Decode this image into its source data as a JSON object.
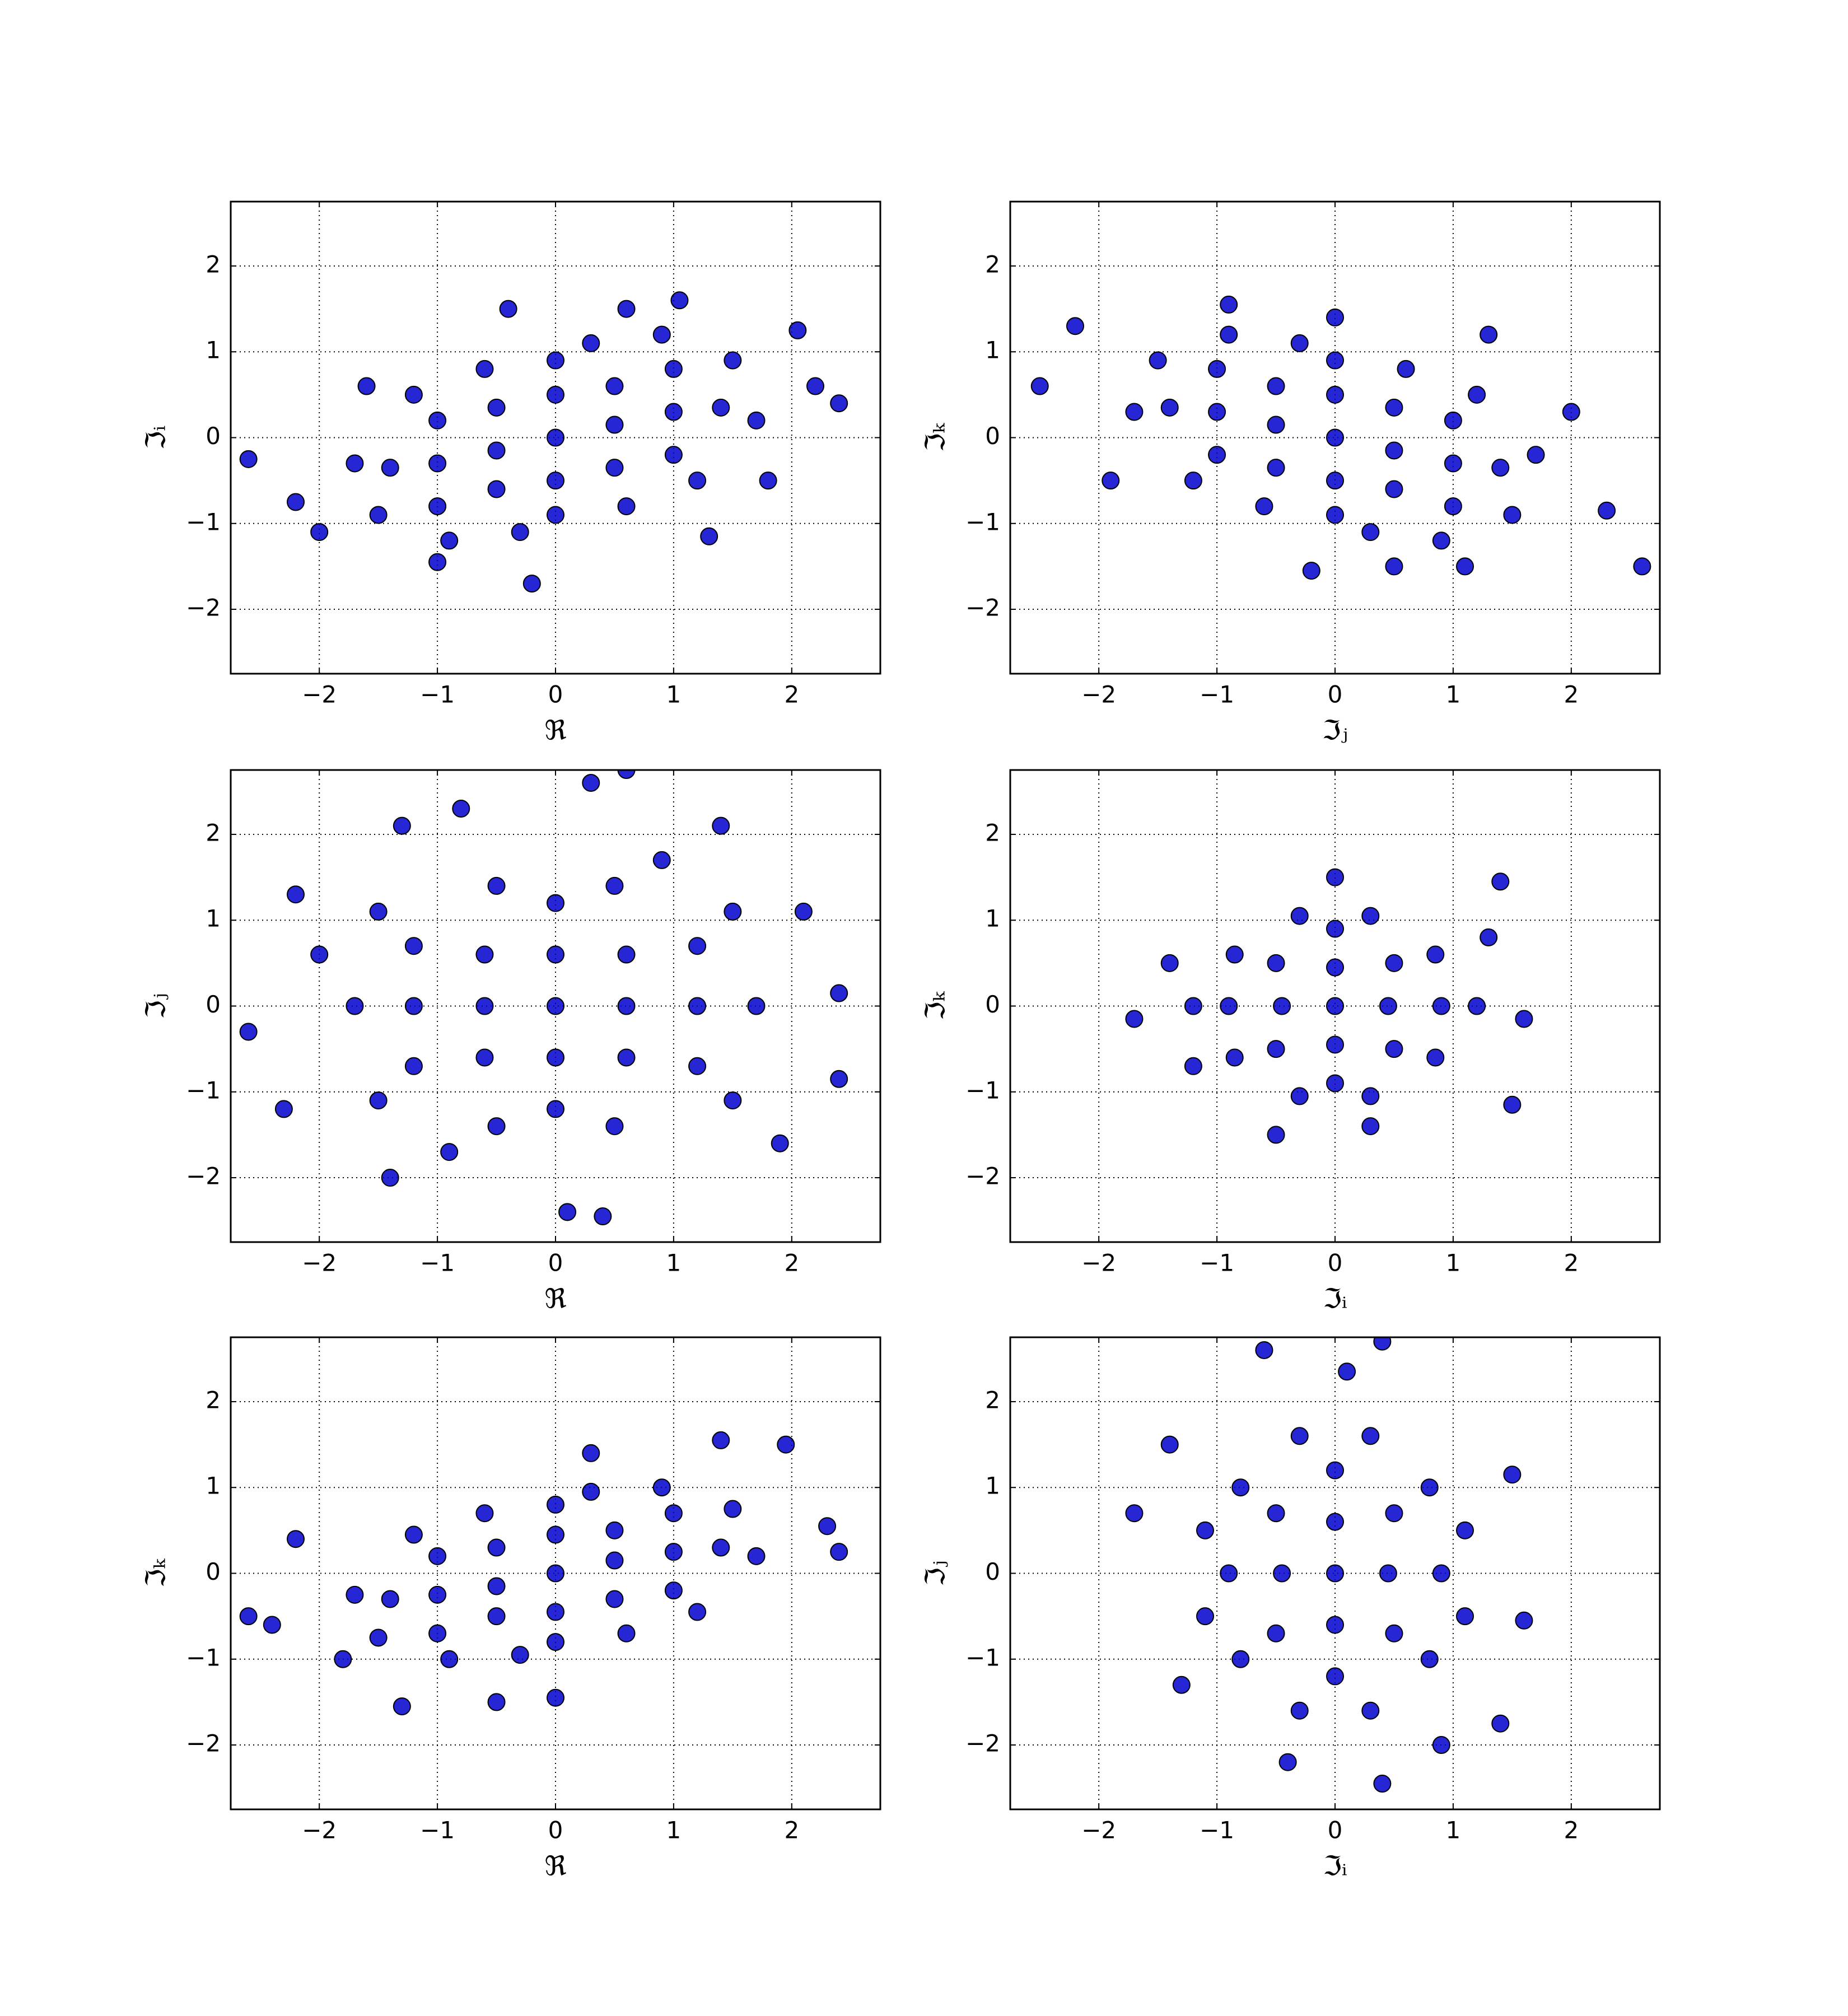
{
  "chart_data": [
    {
      "type": "scatter",
      "xlabel": "ℜ",
      "ylabel": "ℑᵢ",
      "color": "#0000cc",
      "grid": true,
      "xlim": [
        -2.75,
        2.75
      ],
      "ylim": [
        -2.75,
        2.75
      ],
      "xticks": [
        {
          "value": -2,
          "label": "−2"
        },
        {
          "value": -1,
          "label": "−1"
        },
        0,
        1,
        2
      ],
      "yticks": [
        {
          "value": -2,
          "label": "−2"
        },
        {
          "value": -1,
          "label": "−1"
        },
        0,
        1,
        2
      ],
      "x": [
        0,
        0.5,
        -0.5,
        1,
        -1,
        1.4,
        -1.4,
        0,
        0,
        0.5,
        -0.5,
        0.5,
        -0.5,
        1,
        -1,
        1,
        -1,
        0,
        0,
        -0.6,
        0.6,
        1.5,
        -1.5,
        1.7,
        -1.7,
        0.3,
        -0.3,
        -1.2,
        1.2,
        0.9,
        -0.9,
        -2.6,
        2.4,
        2.05,
        1.05,
        -0.4,
        -0.2,
        1.3,
        -2.2,
        -1.0,
        0.6,
        2.2,
        -2.0,
        -1.6,
        1.8
      ],
      "y": [
        0,
        0.15,
        -0.15,
        0.3,
        -0.3,
        0.35,
        -0.35,
        0.5,
        -0.5,
        0.6,
        -0.6,
        -0.35,
        0.35,
        0.8,
        -0.8,
        -0.2,
        0.2,
        0.9,
        -0.9,
        0.8,
        -0.8,
        0.9,
        -0.9,
        0.2,
        -0.3,
        1.1,
        -1.1,
        0.5,
        -0.5,
        1.2,
        -1.2,
        -0.25,
        0.4,
        1.25,
        1.6,
        1.5,
        -1.7,
        -1.15,
        -0.75,
        -1.45,
        1.5,
        0.6,
        -1.1,
        0.6,
        -0.5
      ]
    },
    {
      "type": "scatter",
      "xlabel": "ℑⱼ",
      "ylabel": "ℑₖ",
      "color": "#0000cc",
      "grid": true,
      "xlim": [
        -2.75,
        2.75
      ],
      "ylim": [
        -2.75,
        2.75
      ],
      "xticks": [
        {
          "value": -2,
          "label": "−2"
        },
        {
          "value": -1,
          "label": "−1"
        },
        0,
        1,
        2
      ],
      "yticks": [
        {
          "value": -2,
          "label": "−2"
        },
        {
          "value": -1,
          "label": "−1"
        },
        0,
        1,
        2
      ],
      "x": [
        0,
        0.5,
        -0.5,
        1,
        -1,
        1.4,
        -1.4,
        0,
        0,
        0.5,
        -0.5,
        0.5,
        -0.5,
        1,
        -1,
        1,
        -1,
        0,
        0,
        -0.6,
        0.6,
        1.5,
        -1.5,
        1.7,
        -1.7,
        0.3,
        -0.3,
        -1.2,
        1.2,
        0.9,
        -0.9,
        -2.5,
        -2.2,
        2.6,
        2.3,
        -0.9,
        0,
        1.1,
        -1.9,
        1.3,
        2.0,
        -0.2,
        0.5
      ],
      "y": [
        0,
        -0.15,
        0.15,
        -0.3,
        0.3,
        -0.35,
        0.35,
        -0.5,
        0.5,
        -0.6,
        0.6,
        0.35,
        -0.35,
        -0.8,
        0.8,
        0.2,
        -0.2,
        -0.9,
        0.9,
        -0.8,
        0.8,
        -0.9,
        0.9,
        -0.2,
        0.3,
        -1.1,
        1.1,
        -0.5,
        0.5,
        -1.2,
        1.2,
        0.6,
        1.3,
        -1.5,
        -0.85,
        1.55,
        1.4,
        -1.5,
        -0.5,
        1.2,
        0.3,
        -1.55,
        -1.5
      ]
    },
    {
      "type": "scatter",
      "xlabel": "ℜ",
      "ylabel": "ℑⱼ",
      "color": "#0000cc",
      "grid": true,
      "xlim": [
        -2.75,
        2.75
      ],
      "ylim": [
        -2.75,
        2.75
      ],
      "xticks": [
        {
          "value": -2,
          "label": "−2"
        },
        {
          "value": -1,
          "label": "−1"
        },
        0,
        1,
        2
      ],
      "yticks": [
        {
          "value": -2,
          "label": "−2"
        },
        {
          "value": -1,
          "label": "−1"
        },
        0,
        1,
        2
      ],
      "x": [
        0,
        0.6,
        -0.6,
        0,
        0,
        1.2,
        -1.2,
        0,
        0,
        0.6,
        0.6,
        -0.6,
        -0.6,
        1.2,
        1.2,
        -1.2,
        -1.2,
        0.5,
        0.5,
        -0.5,
        -0.5,
        1.7,
        -1.7,
        1.5,
        1.5,
        -1.5,
        -1.5,
        0.9,
        -0.9,
        0.3,
        0.6,
        -2.6,
        2.4,
        2.4,
        -2.3,
        0.1,
        0.4,
        -1.3,
        -0.8,
        1.4,
        2.1,
        -2.2,
        1.9,
        -1.4,
        -2.0
      ],
      "y": [
        0,
        0,
        0,
        0.6,
        -0.6,
        0,
        0,
        1.2,
        -1.2,
        0.6,
        -0.6,
        0.6,
        -0.6,
        0.7,
        -0.7,
        0.7,
        -0.7,
        1.4,
        -1.4,
        1.4,
        -1.4,
        0,
        0,
        1.1,
        -1.1,
        1.1,
        -1.1,
        1.7,
        -1.7,
        2.6,
        2.75,
        -0.3,
        0.15,
        -0.85,
        -1.2,
        -2.4,
        -2.45,
        2.1,
        2.3,
        2.1,
        1.1,
        1.3,
        -1.6,
        -2.0,
        0.6
      ]
    },
    {
      "type": "scatter",
      "xlabel": "ℑᵢ",
      "ylabel": "ℑₖ",
      "color": "#0000cc",
      "grid": true,
      "xlim": [
        -2.75,
        2.75
      ],
      "ylim": [
        -2.75,
        2.75
      ],
      "xticks": [
        {
          "value": -2,
          "label": "−2"
        },
        {
          "value": -1,
          "label": "−1"
        },
        0,
        1,
        2
      ],
      "yticks": [
        {
          "value": -2,
          "label": "−2"
        },
        {
          "value": -1,
          "label": "−1"
        },
        0,
        1,
        2
      ],
      "x": [
        0,
        0.45,
        -0.45,
        0,
        0,
        0.9,
        -0.9,
        0,
        0,
        0.5,
        0.5,
        -0.5,
        -0.5,
        0.85,
        0.85,
        -0.85,
        -0.85,
        0.3,
        0.3,
        -0.3,
        -0.3,
        1.2,
        -1.2,
        -1.7,
        1.6,
        1.5,
        1.4,
        0,
        -0.5,
        0.3,
        -1.4,
        -1.2,
        1.3
      ],
      "y": [
        0,
        0,
        0,
        0.45,
        -0.45,
        0,
        0,
        0.9,
        -0.9,
        0.5,
        -0.5,
        0.5,
        -0.5,
        0.6,
        -0.6,
        0.6,
        -0.6,
        1.05,
        -1.05,
        1.05,
        -1.05,
        0,
        0,
        -0.15,
        -0.15,
        -1.15,
        1.45,
        1.5,
        -1.5,
        -1.4,
        0.5,
        -0.7,
        0.8
      ]
    },
    {
      "type": "scatter",
      "xlabel": "ℜ",
      "ylabel": "ℑₖ",
      "color": "#0000cc",
      "grid": true,
      "xlim": [
        -2.75,
        2.75
      ],
      "ylim": [
        -2.75,
        2.75
      ],
      "xticks": [
        {
          "value": -2,
          "label": "−2"
        },
        {
          "value": -1,
          "label": "−1"
        },
        0,
        1,
        2
      ],
      "yticks": [
        {
          "value": -2,
          "label": "−2"
        },
        {
          "value": -1,
          "label": "−1"
        },
        0,
        1,
        2
      ],
      "x": [
        0,
        0.5,
        -0.5,
        1,
        -1,
        1.4,
        -1.4,
        0,
        0,
        0.5,
        -0.5,
        0.5,
        -0.5,
        1,
        -1,
        1,
        -1,
        0,
        0,
        -0.6,
        0.6,
        1.5,
        -1.5,
        1.7,
        -1.7,
        0.3,
        -0.3,
        -1.2,
        1.2,
        0.9,
        -0.9,
        -2.6,
        2.4,
        2.3,
        1.95,
        1.4,
        -2.2,
        -1.3,
        -0.5,
        0,
        0.3,
        -1.8,
        -2.4
      ],
      "y": [
        0,
        0.15,
        -0.15,
        0.25,
        -0.25,
        0.3,
        -0.3,
        0.45,
        -0.45,
        0.5,
        -0.5,
        -0.3,
        0.3,
        0.7,
        -0.7,
        -0.2,
        0.2,
        0.8,
        -0.8,
        0.7,
        -0.7,
        0.75,
        -0.75,
        0.2,
        -0.25,
        0.95,
        -0.95,
        0.45,
        -0.45,
        1.0,
        -1.0,
        -0.5,
        0.25,
        0.55,
        1.5,
        1.55,
        0.4,
        -1.55,
        -1.5,
        -1.45,
        1.4,
        -1.0,
        -0.6
      ]
    },
    {
      "type": "scatter",
      "xlabel": "ℑᵢ",
      "ylabel": "ℑⱼ",
      "color": "#0000cc",
      "grid": true,
      "xlim": [
        -2.75,
        2.75
      ],
      "ylim": [
        -2.75,
        2.75
      ],
      "xticks": [
        {
          "value": -2,
          "label": "−2"
        },
        {
          "value": -1,
          "label": "−1"
        },
        0,
        1,
        2
      ],
      "yticks": [
        {
          "value": -2,
          "label": "−2"
        },
        {
          "value": -1,
          "label": "−1"
        },
        0,
        1,
        2
      ],
      "x": [
        0,
        0.45,
        -0.45,
        0,
        0,
        0.9,
        -0.9,
        0,
        0,
        0.5,
        0.5,
        -0.5,
        -0.5,
        0.8,
        0.8,
        -0.8,
        -0.8,
        0.3,
        0.3,
        -0.3,
        -0.3,
        1.1,
        1.1,
        -1.1,
        -1.1,
        -1.7,
        1.6,
        1.5,
        -0.6,
        0.4,
        0.1,
        -0.4,
        0.4,
        1.4,
        -1.3,
        -1.4,
        0.9
      ],
      "y": [
        0,
        0,
        0,
        0.6,
        -0.6,
        0,
        0,
        1.2,
        -1.2,
        0.7,
        -0.7,
        0.7,
        -0.7,
        1.0,
        -1.0,
        1.0,
        -1.0,
        1.6,
        -1.6,
        1.6,
        -1.6,
        0.5,
        -0.5,
        0.5,
        -0.5,
        0.7,
        -0.55,
        1.15,
        2.6,
        2.7,
        2.35,
        -2.2,
        -2.45,
        -1.75,
        -1.3,
        1.5,
        -2.0
      ]
    }
  ]
}
